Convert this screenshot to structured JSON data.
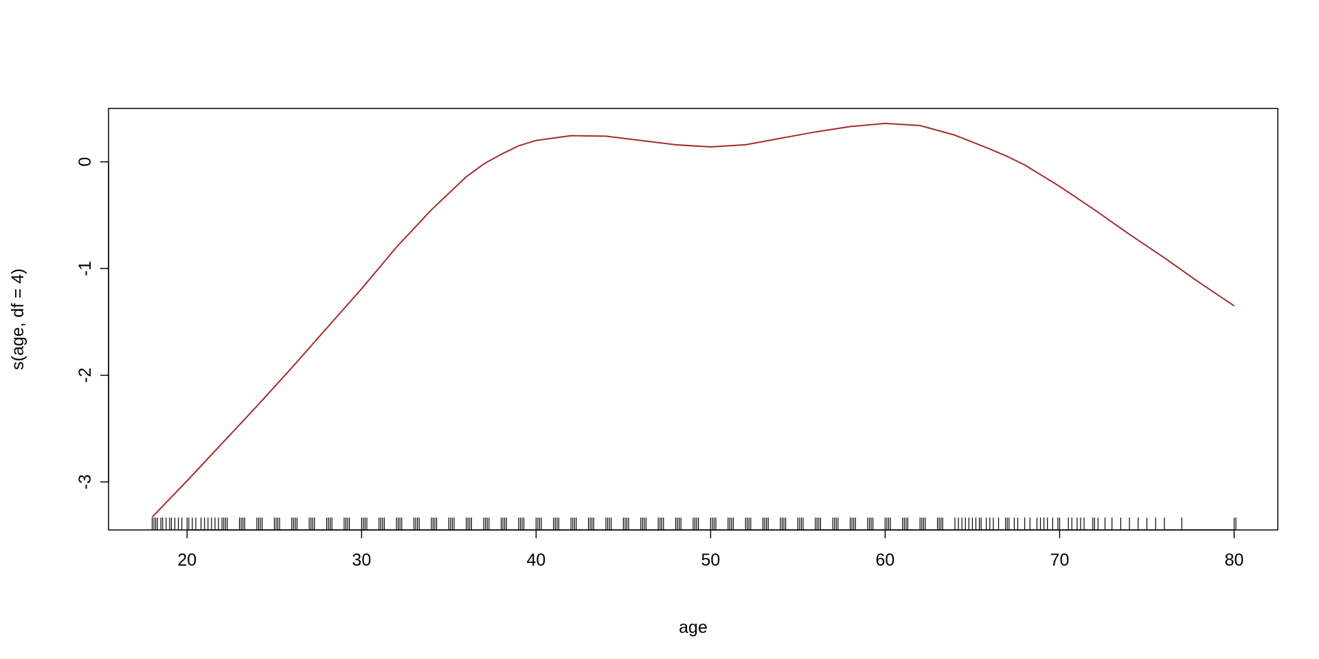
{
  "chart_data": {
    "type": "line",
    "title": "",
    "xlabel": "age",
    "ylabel": "s(age, df = 4)",
    "xlim": [
      15.5,
      82.5
    ],
    "ylim": [
      -3.45,
      0.5
    ],
    "xticks": [
      20,
      30,
      40,
      50,
      60,
      70,
      80
    ],
    "xtick_labels": [
      "20",
      "30",
      "40",
      "50",
      "60",
      "70",
      "80"
    ],
    "yticks": [
      -3,
      -2,
      -1,
      0
    ],
    "ytick_labels": [
      "-3",
      "-2",
      "-1",
      "0"
    ],
    "grid": false,
    "series": [
      {
        "name": "s(age, df = 4)",
        "color": "#A52A2A",
        "x": [
          18,
          20,
          22,
          24,
          26,
          28,
          30,
          32,
          34,
          36,
          37,
          38,
          39,
          40,
          42,
          44,
          46,
          48,
          50,
          52,
          54,
          56,
          58,
          60,
          62,
          64,
          66,
          67,
          68,
          70,
          72,
          74,
          76,
          78,
          80
        ],
        "y": [
          -3.33,
          -2.99,
          -2.64,
          -2.29,
          -1.93,
          -1.56,
          -1.19,
          -0.8,
          -0.45,
          -0.14,
          -0.02,
          0.07,
          0.15,
          0.2,
          0.245,
          0.24,
          0.2,
          0.16,
          0.14,
          0.16,
          0.22,
          0.28,
          0.33,
          0.36,
          0.34,
          0.25,
          0.12,
          0.05,
          -0.03,
          -0.23,
          -0.45,
          -0.68,
          -0.9,
          -1.13,
          -1.35
        ]
      }
    ],
    "rug": [
      18,
      18.1,
      18.2,
      18.3,
      18.5,
      18.6,
      18.8,
      19,
      19.1,
      19.3,
      19.5,
      19.7,
      20,
      20.1,
      20.3,
      20.5,
      20.8,
      21,
      21.2,
      21.4,
      21.6,
      21.8,
      22,
      22.1,
      22.2,
      22.3,
      23,
      23.1,
      23.2,
      23.3,
      24,
      24.1,
      24.2,
      24.3,
      25,
      25.1,
      25.2,
      25.3,
      26,
      26.1,
      26.2,
      26.3,
      27,
      27.1,
      27.2,
      27.3,
      28,
      28.1,
      28.2,
      28.3,
      29,
      29.1,
      29.2,
      29.3,
      30,
      30.1,
      30.2,
      30.3,
      31,
      31.1,
      31.2,
      31.3,
      32,
      32.1,
      32.2,
      32.3,
      33,
      33.1,
      33.2,
      33.3,
      34,
      34.1,
      34.2,
      34.3,
      35,
      35.1,
      35.2,
      35.3,
      36,
      36.1,
      36.2,
      36.3,
      37,
      37.1,
      37.2,
      37.3,
      38,
      38.1,
      38.2,
      38.3,
      39,
      39.1,
      39.2,
      39.3,
      40,
      40.1,
      40.2,
      40.3,
      41,
      41.1,
      41.2,
      41.3,
      42,
      42.1,
      42.2,
      42.3,
      43,
      43.1,
      43.2,
      43.3,
      44,
      44.1,
      44.2,
      44.3,
      45,
      45.1,
      45.2,
      45.3,
      46,
      46.1,
      46.2,
      46.3,
      47,
      47.1,
      47.2,
      47.3,
      48,
      48.1,
      48.2,
      48.3,
      49,
      49.1,
      49.2,
      49.3,
      50,
      50.1,
      50.2,
      50.3,
      51,
      51.1,
      51.2,
      51.3,
      52,
      52.1,
      52.2,
      52.3,
      53,
      53.1,
      53.2,
      53.3,
      54,
      54.1,
      54.2,
      54.3,
      55,
      55.1,
      55.2,
      55.3,
      56,
      56.1,
      56.2,
      56.3,
      57,
      57.1,
      57.2,
      57.3,
      58,
      58.1,
      58.2,
      58.3,
      59,
      59.1,
      59.2,
      59.3,
      60,
      60.1,
      60.2,
      60.3,
      61,
      61.1,
      61.2,
      61.3,
      62,
      62.1,
      62.2,
      62.3,
      63,
      63.1,
      63.2,
      63.3,
      64,
      64.2,
      64.4,
      64.6,
      64.8,
      65,
      65.2,
      65.4,
      65.5,
      65.8,
      66,
      66.2,
      66.5,
      66.9,
      67,
      67.1,
      67.4,
      67.6,
      68,
      68.3,
      68.7,
      68.9,
      69.1,
      69.3,
      69.6,
      69.9,
      70,
      70.5,
      70.7,
      71,
      71.2,
      71.4,
      71.9,
      72,
      72.2,
      72.6,
      73,
      73.5,
      74,
      74.5,
      75,
      75.5,
      76,
      77,
      80,
      80.1
    ]
  }
}
